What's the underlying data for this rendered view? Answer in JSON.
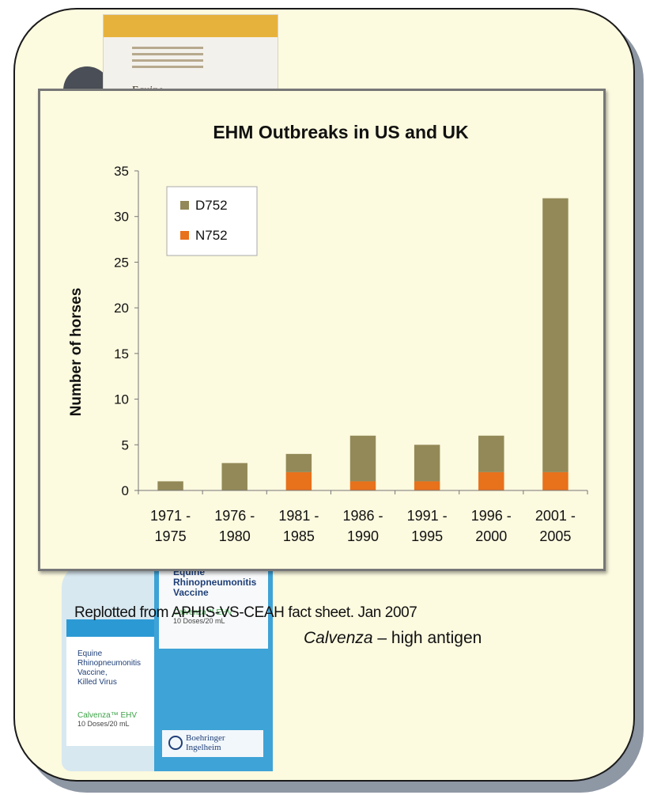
{
  "chart_data": {
    "type": "bar",
    "stacked": true,
    "title": "EHM Outbreaks in US and UK",
    "ylabel": "Number of horses",
    "xlabel": "",
    "ylim": [
      0,
      35
    ],
    "yticks": [
      0,
      5,
      10,
      15,
      20,
      25,
      30,
      35
    ],
    "grid": false,
    "legend_position": "top-left",
    "categories": [
      [
        "1971 -",
        "1975"
      ],
      [
        "1976 -",
        "1980"
      ],
      [
        "1981 -",
        "1985"
      ],
      [
        "1986 -",
        "1990"
      ],
      [
        "1991 -",
        "1995"
      ],
      [
        "1996 -",
        "2000"
      ],
      [
        "2001 -",
        "2005"
      ]
    ],
    "series": [
      {
        "name": "N752",
        "color": "#e8711b",
        "values": [
          0,
          0,
          2,
          1,
          1,
          2,
          2
        ]
      },
      {
        "name": "D752",
        "color": "#938958",
        "values": [
          1,
          3,
          2,
          5,
          4,
          4,
          30
        ]
      }
    ],
    "legend_order": [
      "D752",
      "N752"
    ]
  },
  "caption": {
    "source": "Replotted from APHIS-VS-CEAH fact sheet.  Jan 2007",
    "product_name": "Calvenza",
    "product_note": " – high antigen"
  },
  "photos": {
    "top_box_brand": "Equine",
    "carton_lines": [
      "Equine",
      "Rhinopneumonitis",
      "Vaccine",
      "Calvenza™ EHV"
    ],
    "carton_doses": "10 Doses/20 mL",
    "carton_maker": [
      "Boehringer",
      "Ingelheim"
    ],
    "bottle_lines": [
      "Equine",
      "Rhinopneumonitis",
      "Vaccine,",
      "Killed Virus"
    ],
    "bottle_brand": "Calvenza™ EHV",
    "bottle_doses": "10 Doses/20 mL"
  }
}
